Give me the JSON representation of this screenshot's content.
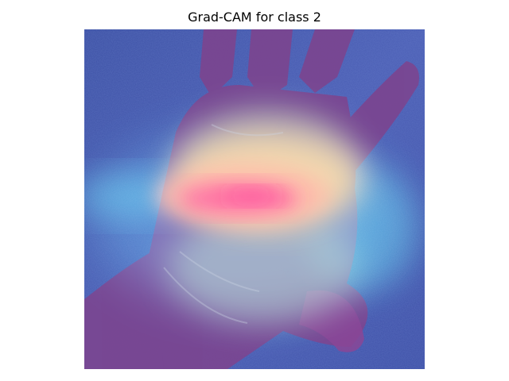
{
  "title": "Grad-CAM for class 2",
  "image": {
    "subject": "palm-of-hand",
    "overlay": "grad-cam-heatmap",
    "colors": {
      "background": "#3f52a8",
      "skin_shadow": "#7a3f86",
      "hot": "#ff2a2a",
      "warm": "#ffd23a",
      "cool": "#36c6e0"
    }
  }
}
